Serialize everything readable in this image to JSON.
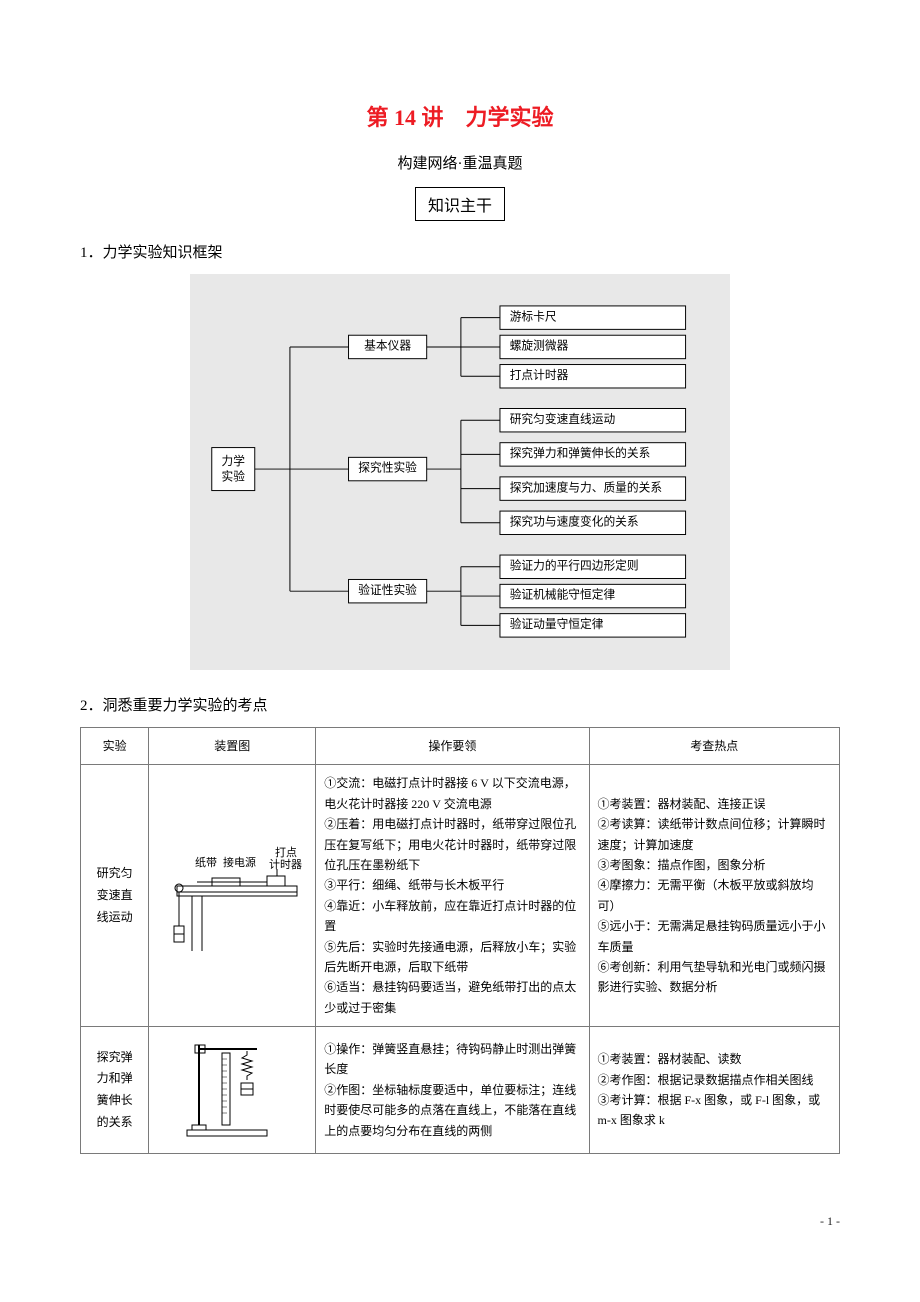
{
  "title": "第 14 讲　力学实验",
  "subtitle": "构建网络·重温真题",
  "box_label": "知识主干",
  "h1": "1．力学实验知识框架",
  "h2": "2．洞悉重要力学实验的考点",
  "tree": {
    "root": "力学\n实验",
    "mid": [
      "基本仪器",
      "探究性实验",
      "验证性实验"
    ],
    "leaves": [
      [
        "游标卡尺",
        "螺旋测微器",
        "打点计时器"
      ],
      [
        "研究匀变速直线运动",
        "探究弹力和弹簧伸长的关系",
        "探究加速度与力、质量的关系",
        "探究功与速度变化的关系"
      ],
      [
        "验证力的平行四边形定则",
        "验证机械能守恒定律",
        "验证动量守恒定律"
      ]
    ]
  },
  "table": {
    "headers": [
      "实验",
      "装置图",
      "操作要领",
      "考查热点"
    ],
    "rows": [
      {
        "name": "研究匀\n变速直\n线运动",
        "diag_labels": {
          "tape": "纸带",
          "power": "接电源",
          "timer": "打点\n计时器"
        },
        "op": "①交流：电磁打点计时器接 6 V 以下交流电源，电火花计时器接 220 V 交流电源\n②压着：用电磁打点计时器时，纸带穿过限位孔压在复写纸下；用电火花计时器时，纸带穿过限位孔压在墨粉纸下\n③平行：细绳、纸带与长木板平行\n④靠近：小车释放前，应在靠近打点计时器的位置\n⑤先后：实验时先接通电源，后释放小车；实验后先断开电源，后取下纸带\n⑥适当：悬挂钩码要适当，避免纸带打出的点太少或过于密集",
        "hot": "①考装置：器材装配、连接正误\n②考读算：读纸带计数点间位移；计算瞬时速度；计算加速度\n③考图象：描点作图，图象分析\n④摩擦力：无需平衡（木板平放或斜放均可）\n⑤远小于：无需满足悬挂钩码质量远小于小车质量\n⑥考创新：利用气垫导轨和光电门或频闪摄影进行实验、数据分析"
      },
      {
        "name": "探究弹\n力和弹\n簧伸长\n的关系",
        "op": "①操作：弹簧竖直悬挂；待钩码静止时测出弹簧长度\n②作图：坐标轴标度要适中，单位要标注；连线时要使尽可能多的点落在直线上，不能落在直线上的点要均匀分布在直线的两侧",
        "hot": "①考装置：器材装配、读数\n②考作图：根据记录数据描点作相关图线\n③考计算：根据 F-x 图象，或 F-l 图象，或 m-x 图象求 k"
      }
    ]
  },
  "page_num": "- 1 -",
  "colors": {
    "red": "#ed1c24",
    "gray_bg": "#e8e8e8",
    "border": "#7a7a7a"
  }
}
